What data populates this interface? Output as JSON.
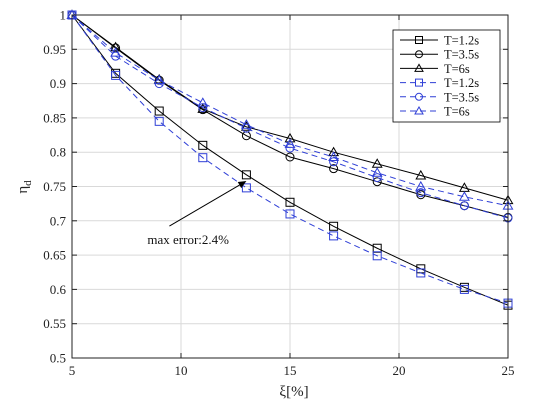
{
  "chart_data": {
    "type": "line",
    "xlabel": "ξ[%]",
    "ylabel": "η",
    "ylabel_sub": "d",
    "xlim": [
      5,
      25
    ],
    "ylim": [
      0.5,
      1.0
    ],
    "xticks": [
      5,
      10,
      15,
      20,
      25
    ],
    "yticks": [
      0.5,
      0.55,
      0.6,
      0.65,
      0.7,
      0.75,
      0.8,
      0.85,
      0.9,
      0.95,
      1
    ],
    "grid": true,
    "legend_position": "top-right",
    "x": [
      5,
      7,
      9,
      11,
      13,
      15,
      17,
      19,
      21,
      23,
      25
    ],
    "series": [
      {
        "name": "T=1.2s",
        "color": "#000000",
        "dashed": false,
        "marker": "square",
        "values": [
          1.0,
          0.915,
          0.86,
          0.81,
          0.767,
          0.727,
          0.692,
          0.66,
          0.63,
          0.603,
          0.577
        ]
      },
      {
        "name": "T=3.5s",
        "color": "#000000",
        "dashed": false,
        "marker": "circle",
        "values": [
          1.0,
          0.952,
          0.905,
          0.862,
          0.824,
          0.793,
          0.776,
          0.757,
          0.738,
          0.722,
          0.705
        ]
      },
      {
        "name": "T=6s",
        "color": "#000000",
        "dashed": false,
        "marker": "triangle",
        "values": [
          1.0,
          0.953,
          0.906,
          0.863,
          0.837,
          0.82,
          0.8,
          0.783,
          0.766,
          0.748,
          0.73
        ]
      },
      {
        "name": "T=1.2s",
        "color": "#2f3fd6",
        "dashed": true,
        "marker": "square",
        "values": [
          1.0,
          0.912,
          0.845,
          0.792,
          0.748,
          0.71,
          0.678,
          0.649,
          0.624,
          0.6,
          0.58
        ]
      },
      {
        "name": "T=3.5s",
        "color": "#2f3fd6",
        "dashed": true,
        "marker": "circle",
        "values": [
          1.0,
          0.94,
          0.9,
          0.865,
          0.835,
          0.806,
          0.786,
          0.763,
          0.741,
          0.722,
          0.704
        ]
      },
      {
        "name": "T=6s",
        "color": "#2f3fd6",
        "dashed": true,
        "marker": "triangle",
        "values": [
          1.0,
          0.945,
          0.905,
          0.872,
          0.84,
          0.812,
          0.793,
          0.77,
          0.75,
          0.735,
          0.722
        ]
      }
    ],
    "annotation": {
      "text": "max error:2.4%",
      "x": 13,
      "y": 0.758
    }
  }
}
